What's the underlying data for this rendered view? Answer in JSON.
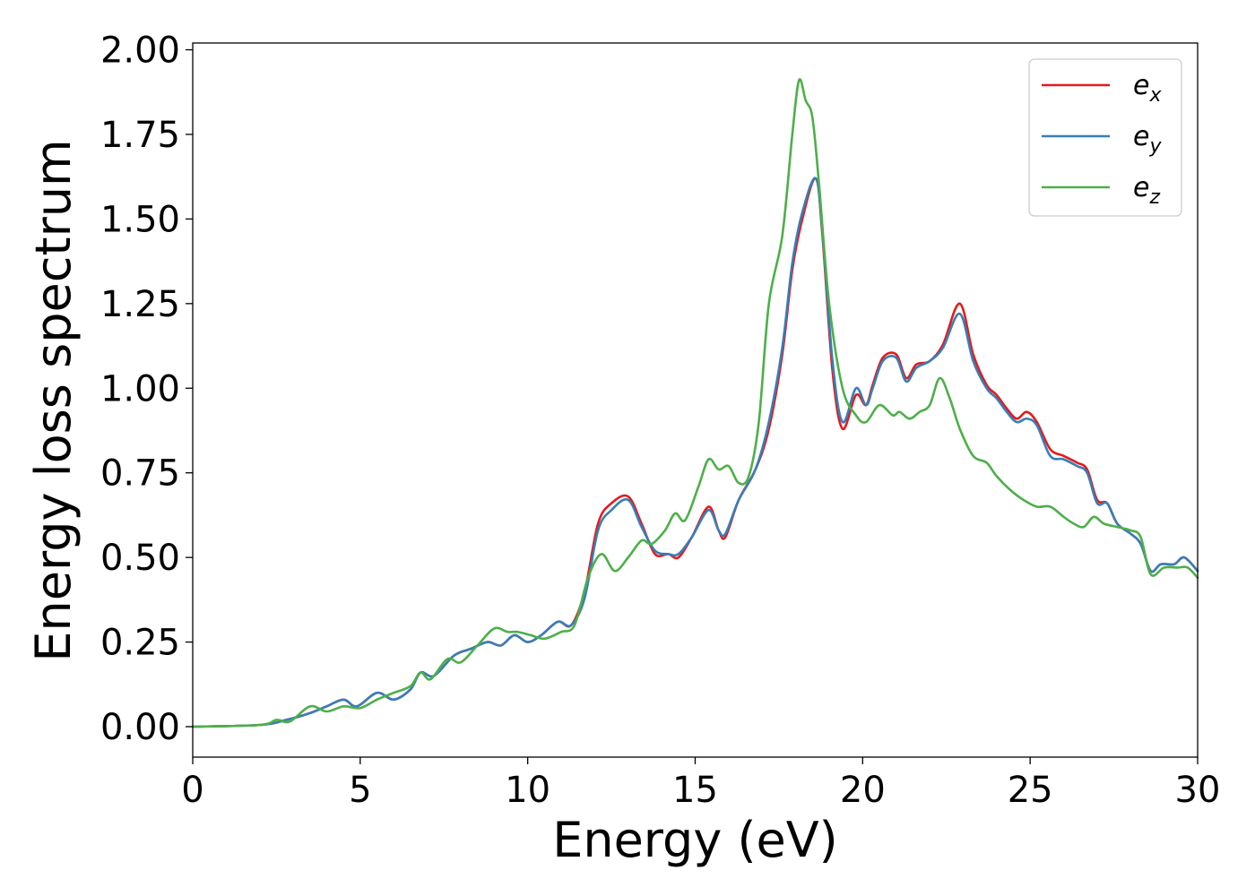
{
  "chart_data": {
    "type": "line",
    "xlabel": "Energy (eV)",
    "ylabel": "Energy loss spectrum",
    "xlim": [
      0,
      30
    ],
    "ylim": [
      -0.09,
      2.02
    ],
    "x_ticks": [
      0,
      5,
      10,
      15,
      20,
      25,
      30
    ],
    "x_tick_labels": [
      "0",
      "5",
      "10",
      "15",
      "20",
      "25",
      "30"
    ],
    "y_ticks": [
      0,
      0.25,
      0.5,
      0.75,
      1.0,
      1.25,
      1.5,
      1.75,
      2.0
    ],
    "y_tick_labels": [
      "0.00",
      "0.25",
      "0.50",
      "0.75",
      "1.00",
      "1.25",
      "1.50",
      "1.75",
      "2.00"
    ],
    "grid": false,
    "legend_position": "top-right",
    "series": [
      {
        "name": "e_x",
        "label_base": "e",
        "label_sub": "x",
        "color": "#e41a1c",
        "x": [
          0,
          2,
          2.8,
          3.5,
          4,
          4.5,
          4.9,
          5.5,
          6,
          6.5,
          6.8,
          7.2,
          7.8,
          8.3,
          8.8,
          9.2,
          9.6,
          10,
          10.4,
          10.9,
          11.3,
          11.7,
          12.1,
          12.5,
          13,
          13.4,
          13.8,
          14.2,
          14.5,
          14.9,
          15.4,
          15.7,
          15.9,
          16.3,
          16.8,
          17.2,
          17.6,
          17.9,
          18.2,
          18.6,
          18.8,
          19.1,
          19.4,
          19.8,
          20.1,
          20.3,
          20.6,
          21,
          21.3,
          21.6,
          22,
          22.4,
          22.9,
          23.3,
          23.7,
          24,
          24.3,
          24.6,
          24.9,
          25.2,
          25.6,
          26,
          26.4,
          26.7,
          27,
          27.3,
          27.6,
          28,
          28.3,
          28.6,
          28.9,
          29.3,
          29.6,
          30
        ],
        "y": [
          0,
          0.005,
          0.02,
          0.04,
          0.06,
          0.08,
          0.06,
          0.1,
          0.08,
          0.11,
          0.16,
          0.15,
          0.21,
          0.23,
          0.25,
          0.24,
          0.27,
          0.25,
          0.27,
          0.31,
          0.3,
          0.4,
          0.6,
          0.66,
          0.68,
          0.6,
          0.51,
          0.51,
          0.5,
          0.56,
          0.65,
          0.58,
          0.56,
          0.67,
          0.76,
          0.88,
          1.1,
          1.35,
          1.5,
          1.62,
          1.45,
          1.05,
          0.88,
          0.98,
          0.95,
          1.01,
          1.09,
          1.1,
          1.03,
          1.07,
          1.08,
          1.13,
          1.25,
          1.1,
          1.01,
          0.98,
          0.94,
          0.91,
          0.93,
          0.9,
          0.82,
          0.8,
          0.78,
          0.76,
          0.67,
          0.66,
          0.6,
          0.57,
          0.54,
          0.46,
          0.48,
          0.48,
          0.5,
          0.46
        ]
      },
      {
        "name": "e_y",
        "label_base": "e",
        "label_sub": "y",
        "color": "#377eb8",
        "x": [
          0,
          2,
          2.8,
          3.5,
          4,
          4.5,
          4.9,
          5.5,
          6,
          6.5,
          6.8,
          7.2,
          7.8,
          8.3,
          8.8,
          9.2,
          9.6,
          10,
          10.4,
          10.9,
          11.3,
          11.7,
          12.1,
          12.5,
          13,
          13.4,
          13.8,
          14.2,
          14.5,
          14.9,
          15.4,
          15.7,
          15.9,
          16.3,
          16.8,
          17.2,
          17.6,
          17.9,
          18.2,
          18.6,
          18.8,
          19.1,
          19.4,
          19.8,
          20.1,
          20.3,
          20.6,
          21,
          21.3,
          21.6,
          22,
          22.4,
          22.9,
          23.3,
          23.7,
          24,
          24.3,
          24.6,
          24.9,
          25.2,
          25.6,
          26,
          26.4,
          26.7,
          27,
          27.3,
          27.6,
          28,
          28.3,
          28.6,
          28.9,
          29.3,
          29.6,
          30
        ],
        "y": [
          0,
          0.005,
          0.02,
          0.04,
          0.06,
          0.08,
          0.06,
          0.1,
          0.08,
          0.11,
          0.16,
          0.15,
          0.21,
          0.23,
          0.25,
          0.24,
          0.27,
          0.25,
          0.27,
          0.31,
          0.3,
          0.38,
          0.58,
          0.64,
          0.67,
          0.59,
          0.52,
          0.51,
          0.51,
          0.56,
          0.64,
          0.58,
          0.57,
          0.67,
          0.76,
          0.9,
          1.12,
          1.37,
          1.52,
          1.62,
          1.46,
          1.08,
          0.9,
          1.0,
          0.95,
          1.0,
          1.08,
          1.09,
          1.02,
          1.06,
          1.08,
          1.12,
          1.22,
          1.08,
          1.0,
          0.97,
          0.93,
          0.9,
          0.91,
          0.89,
          0.8,
          0.79,
          0.77,
          0.75,
          0.66,
          0.66,
          0.6,
          0.57,
          0.54,
          0.46,
          0.48,
          0.48,
          0.5,
          0.46
        ]
      },
      {
        "name": "e_z",
        "label_base": "e",
        "label_sub": "z",
        "color": "#4daf4a",
        "x": [
          0,
          2,
          2.5,
          2.9,
          3.5,
          4,
          4.5,
          5,
          5.5,
          6,
          6.5,
          6.8,
          7.1,
          7.6,
          8,
          8.5,
          9,
          9.4,
          9.7,
          10.1,
          10.5,
          11,
          11.4,
          11.8,
          12.2,
          12.6,
          13,
          13.4,
          13.7,
          14.1,
          14.4,
          14.7,
          15.1,
          15.4,
          15.7,
          16,
          16.3,
          16.6,
          16.9,
          17.2,
          17.6,
          17.9,
          18.1,
          18.3,
          18.5,
          18.7,
          19,
          19.4,
          19.8,
          20.1,
          20.5,
          20.9,
          21.1,
          21.4,
          21.7,
          22,
          22.3,
          22.6,
          22.9,
          23.3,
          23.7,
          24,
          24.4,
          24.8,
          25.2,
          25.6,
          26,
          26.3,
          26.6,
          26.9,
          27.2,
          27.6,
          28,
          28.3,
          28.6,
          29,
          29.4,
          29.7,
          30
        ],
        "y": [
          0,
          0.005,
          0.02,
          0.015,
          0.06,
          0.045,
          0.06,
          0.055,
          0.08,
          0.1,
          0.12,
          0.16,
          0.14,
          0.2,
          0.19,
          0.24,
          0.29,
          0.28,
          0.28,
          0.27,
          0.26,
          0.28,
          0.3,
          0.44,
          0.51,
          0.46,
          0.5,
          0.55,
          0.54,
          0.58,
          0.63,
          0.61,
          0.71,
          0.79,
          0.76,
          0.77,
          0.72,
          0.74,
          0.9,
          1.25,
          1.45,
          1.75,
          1.91,
          1.85,
          1.8,
          1.6,
          1.25,
          1.0,
          0.92,
          0.9,
          0.95,
          0.92,
          0.93,
          0.91,
          0.93,
          0.95,
          1.03,
          0.97,
          0.88,
          0.8,
          0.78,
          0.74,
          0.7,
          0.67,
          0.65,
          0.65,
          0.62,
          0.6,
          0.59,
          0.62,
          0.6,
          0.59,
          0.58,
          0.56,
          0.45,
          0.47,
          0.47,
          0.47,
          0.44
        ]
      }
    ]
  }
}
